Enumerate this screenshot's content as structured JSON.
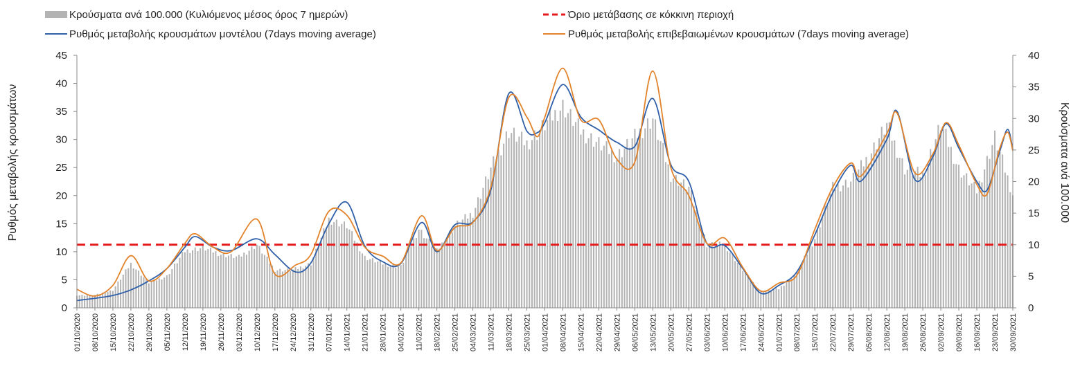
{
  "chart_data": {
    "type": "bar+line",
    "title": "",
    "ylabel_left": "Ρυθμός μεταβολής κρουσμάτων",
    "ylabel_right": "Κρούσματα ανά 100.000",
    "ylim_left": [
      0,
      45
    ],
    "ylim_right": [
      0,
      40
    ],
    "yticks_left": [
      0,
      5,
      10,
      15,
      20,
      25,
      30,
      35,
      40,
      45
    ],
    "yticks_right": [
      0,
      5,
      10,
      15,
      20,
      25,
      30,
      35,
      40
    ],
    "x_range": [
      "01/10/2020",
      "30/09/2021"
    ],
    "x_tick_labels": [
      "01/10/2020",
      "08/10/2020",
      "15/10/2020",
      "22/10/2020",
      "29/10/2020",
      "05/11/2020",
      "12/11/2020",
      "19/11/2020",
      "26/11/2020",
      "03/12/2020",
      "10/12/2020",
      "17/12/2020",
      "24/12/2020",
      "31/12/2020",
      "07/01/2021",
      "14/01/2021",
      "21/01/2021",
      "28/01/2021",
      "04/02/2021",
      "11/02/2021",
      "18/02/2021",
      "25/02/2021",
      "04/03/2021",
      "11/03/2021",
      "18/03/2021",
      "25/03/2021",
      "01/04/2021",
      "08/04/2021",
      "15/04/2021",
      "22/04/2021",
      "29/04/2021",
      "06/05/2021",
      "13/05/2021",
      "20/05/2021",
      "27/05/2021",
      "03/06/2021",
      "10/06/2021",
      "17/06/2021",
      "24/06/2021",
      "01/07/2021",
      "08/07/2021",
      "15/07/2021",
      "22/07/2021",
      "29/07/2021",
      "05/08/2021",
      "12/08/2021",
      "19/08/2021",
      "26/08/2021",
      "02/09/2021",
      "09/09/2021",
      "16/09/2021",
      "23/09/2021",
      "30/09/2021"
    ],
    "legend_position": "top",
    "colors": {
      "bars": "#b3b3b3",
      "model": "#2e5fa8",
      "confirmed": "#e2822a",
      "threshold": "#e41a1c"
    },
    "series": [
      {
        "name": "Κρούσματα ανά 100.000 (Κυλιόμενος μέσος όρος 7 ημερών)",
        "type": "bar",
        "axis": "right",
        "color": "#b3b3b3",
        "points": [
          [
            "01/10/2020",
            2.0
          ],
          [
            "08/10/2020",
            2.0
          ],
          [
            "15/10/2020",
            2.8
          ],
          [
            "22/10/2020",
            7.0
          ],
          [
            "29/10/2020",
            4.0
          ],
          [
            "05/11/2020",
            5.0
          ],
          [
            "12/11/2020",
            9.0
          ],
          [
            "19/11/2020",
            9.5
          ],
          [
            "26/11/2020",
            8.5
          ],
          [
            "03/12/2020",
            8.0
          ],
          [
            "10/12/2020",
            10.0
          ],
          [
            "17/12/2020",
            6.0
          ],
          [
            "24/12/2020",
            6.0
          ],
          [
            "31/12/2020",
            7.0
          ],
          [
            "07/01/2021",
            14.0
          ],
          [
            "14/01/2021",
            13.0
          ],
          [
            "21/01/2021",
            8.0
          ],
          [
            "28/01/2021",
            7.0
          ],
          [
            "04/02/2021",
            6.5
          ],
          [
            "11/02/2021",
            12.5
          ],
          [
            "18/02/2021",
            9.0
          ],
          [
            "25/02/2021",
            13.0
          ],
          [
            "04/03/2021",
            15.0
          ],
          [
            "11/03/2021",
            22.0
          ],
          [
            "18/03/2021",
            28.0
          ],
          [
            "25/03/2021",
            26.0
          ],
          [
            "01/04/2021",
            29.0
          ],
          [
            "08/04/2021",
            32.0
          ],
          [
            "15/04/2021",
            28.0
          ],
          [
            "22/04/2021",
            26.0
          ],
          [
            "29/04/2021",
            24.0
          ],
          [
            "06/05/2021",
            27.0
          ],
          [
            "13/05/2021",
            30.0
          ],
          [
            "20/05/2021",
            21.0
          ],
          [
            "27/05/2021",
            19.0
          ],
          [
            "03/06/2021",
            10.0
          ],
          [
            "10/06/2021",
            10.0
          ],
          [
            "17/06/2021",
            6.0
          ],
          [
            "24/06/2021",
            2.5
          ],
          [
            "01/07/2021",
            3.0
          ],
          [
            "08/07/2021",
            5.5
          ],
          [
            "15/07/2021",
            11.0
          ],
          [
            "22/07/2021",
            19.0
          ],
          [
            "29/07/2021",
            20.0
          ],
          [
            "05/08/2021",
            24.0
          ],
          [
            "12/08/2021",
            29.0
          ],
          [
            "19/08/2021",
            22.0
          ],
          [
            "26/08/2021",
            21.0
          ],
          [
            "02/09/2021",
            29.0
          ],
          [
            "09/09/2021",
            22.0
          ],
          [
            "16/09/2021",
            18.5
          ],
          [
            "23/09/2021",
            27.0
          ],
          [
            "30/09/2021",
            18.0
          ]
        ]
      },
      {
        "name": "Ρυθμός μεταβολής κρουσμάτων μοντέλου (7days moving average)",
        "type": "line",
        "axis": "left",
        "color": "#2e5fa8",
        "points": [
          [
            "01/10/2020",
            1.3
          ],
          [
            "08/10/2020",
            1.7
          ],
          [
            "15/10/2020",
            2.2
          ],
          [
            "22/10/2020",
            3.2
          ],
          [
            "29/10/2020",
            4.8
          ],
          [
            "05/11/2020",
            7.0
          ],
          [
            "12/11/2020",
            10.8
          ],
          [
            "16/11/2020",
            12.7
          ],
          [
            "23/11/2020",
            10.8
          ],
          [
            "30/11/2020",
            10.2
          ],
          [
            "10/12/2020",
            12.3
          ],
          [
            "17/12/2020",
            9.5
          ],
          [
            "25/12/2020",
            6.4
          ],
          [
            "31/12/2020",
            8.0
          ],
          [
            "07/01/2021",
            15.0
          ],
          [
            "14/01/2021",
            18.8
          ],
          [
            "21/01/2021",
            11.0
          ],
          [
            "28/01/2021",
            8.2
          ],
          [
            "04/02/2021",
            7.9
          ],
          [
            "12/02/2021",
            15.2
          ],
          [
            "18/02/2021",
            10.0
          ],
          [
            "25/02/2021",
            14.8
          ],
          [
            "04/03/2021",
            15.3
          ],
          [
            "11/03/2021",
            21.0
          ],
          [
            "18/03/2021",
            38.2
          ],
          [
            "25/03/2021",
            31.5
          ],
          [
            "29/03/2021",
            31.2
          ],
          [
            "01/04/2021",
            33.0
          ],
          [
            "08/04/2021",
            39.8
          ],
          [
            "15/04/2021",
            34.0
          ],
          [
            "22/04/2021",
            31.7
          ],
          [
            "29/04/2021",
            29.5
          ],
          [
            "06/05/2021",
            28.8
          ],
          [
            "13/05/2021",
            37.3
          ],
          [
            "20/05/2021",
            25.5
          ],
          [
            "27/05/2021",
            22.5
          ],
          [
            "03/06/2021",
            11.5
          ],
          [
            "10/06/2021",
            11.1
          ],
          [
            "17/06/2021",
            7.0
          ],
          [
            "24/06/2021",
            2.6
          ],
          [
            "01/07/2021",
            4.0
          ],
          [
            "08/07/2021",
            6.4
          ],
          [
            "15/07/2021",
            13.0
          ],
          [
            "22/07/2021",
            20.5
          ],
          [
            "29/07/2021",
            25.4
          ],
          [
            "02/08/2021",
            22.6
          ],
          [
            "12/08/2021",
            30.0
          ],
          [
            "16/08/2021",
            35.0
          ],
          [
            "23/08/2021",
            22.8
          ],
          [
            "30/08/2021",
            27.0
          ],
          [
            "04/09/2021",
            32.8
          ],
          [
            "09/09/2021",
            28.5
          ],
          [
            "16/09/2021",
            22.5
          ],
          [
            "20/09/2021",
            21.0
          ],
          [
            "25/09/2021",
            28.0
          ],
          [
            "28/09/2021",
            31.8
          ],
          [
            "30/09/2021",
            28.2
          ]
        ]
      },
      {
        "name": "Ρυθμός μεταβολής επιβεβαιωμένων κρουσμάτων (7days moving average)",
        "type": "line",
        "axis": "left",
        "color": "#e2822a",
        "points": [
          [
            "01/10/2020",
            3.3
          ],
          [
            "08/10/2020",
            2.1
          ],
          [
            "15/10/2020",
            4.0
          ],
          [
            "22/10/2020",
            9.3
          ],
          [
            "29/10/2020",
            4.8
          ],
          [
            "05/11/2020",
            7.0
          ],
          [
            "12/11/2020",
            11.5
          ],
          [
            "16/11/2020",
            13.2
          ],
          [
            "23/11/2020",
            10.8
          ],
          [
            "30/11/2020",
            10.0
          ],
          [
            "10/12/2020",
            15.8
          ],
          [
            "17/12/2020",
            6.0
          ],
          [
            "25/12/2020",
            7.6
          ],
          [
            "31/12/2020",
            9.5
          ],
          [
            "07/01/2021",
            17.2
          ],
          [
            "14/01/2021",
            16.5
          ],
          [
            "21/01/2021",
            10.8
          ],
          [
            "28/01/2021",
            9.2
          ],
          [
            "04/02/2021",
            8.0
          ],
          [
            "12/02/2021",
            16.4
          ],
          [
            "18/02/2021",
            10.2
          ],
          [
            "25/02/2021",
            14.3
          ],
          [
            "04/03/2021",
            15.2
          ],
          [
            "11/03/2021",
            21.5
          ],
          [
            "18/03/2021",
            37.5
          ],
          [
            "25/03/2021",
            34.0
          ],
          [
            "29/03/2021",
            30.5
          ],
          [
            "01/04/2021",
            34.0
          ],
          [
            "08/04/2021",
            42.7
          ],
          [
            "15/04/2021",
            33.5
          ],
          [
            "22/04/2021",
            33.5
          ],
          [
            "29/04/2021",
            26.5
          ],
          [
            "06/05/2021",
            26.0
          ],
          [
            "13/05/2021",
            42.2
          ],
          [
            "20/05/2021",
            25.0
          ],
          [
            "27/05/2021",
            20.0
          ],
          [
            "03/06/2021",
            11.5
          ],
          [
            "10/06/2021",
            12.4
          ],
          [
            "17/06/2021",
            7.2
          ],
          [
            "24/06/2021",
            3.0
          ],
          [
            "01/07/2021",
            4.4
          ],
          [
            "08/07/2021",
            5.8
          ],
          [
            "15/07/2021",
            14.0
          ],
          [
            "22/07/2021",
            21.5
          ],
          [
            "29/07/2021",
            25.8
          ],
          [
            "02/08/2021",
            23.5
          ],
          [
            "12/08/2021",
            31.0
          ],
          [
            "16/08/2021",
            34.7
          ],
          [
            "23/08/2021",
            24.0
          ],
          [
            "30/08/2021",
            27.5
          ],
          [
            "04/09/2021",
            33.0
          ],
          [
            "09/09/2021",
            29.0
          ],
          [
            "16/09/2021",
            22.0
          ],
          [
            "20/09/2021",
            20.3
          ],
          [
            "25/09/2021",
            28.5
          ],
          [
            "28/09/2021",
            31.3
          ],
          [
            "30/09/2021",
            28.0
          ]
        ]
      },
      {
        "name": "Όριο μετάβασης σε κόκκινη περιοχή",
        "type": "threshold",
        "axis": "right",
        "color": "#e41a1c",
        "value": 10
      }
    ]
  }
}
